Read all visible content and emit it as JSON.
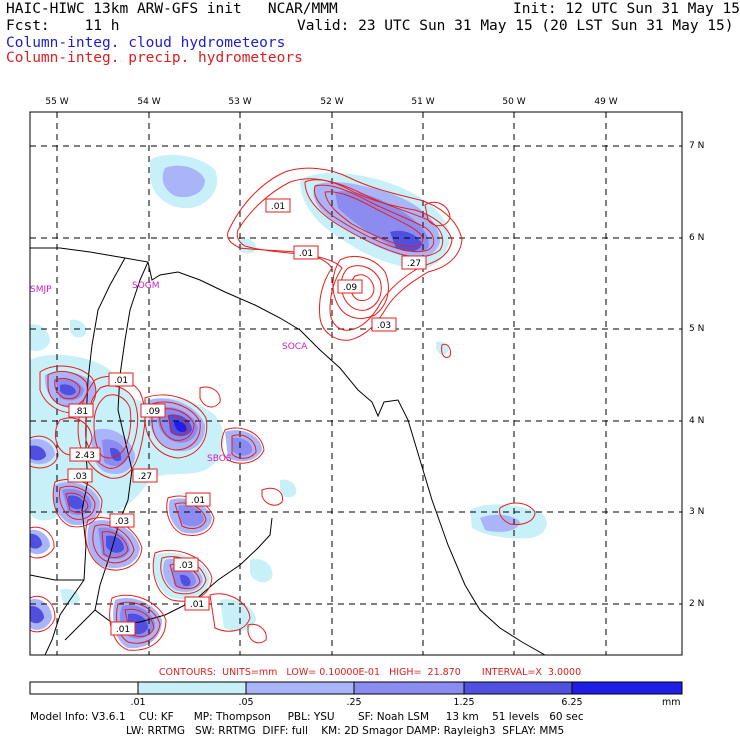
{
  "header": {
    "title": "HAIC-HIWC 13km ARW-GFS init   NCAR/MMM",
    "init": "Init: 12 UTC Sun 31 May 15",
    "fcst": "Fcst:    11 h",
    "valid": "Valid: 23 UTC Sun 31 May 15 (20 LST Sun 31 May 15)",
    "legend_cloud": "Column-integ. cloud hydrometeors",
    "legend_precip": "Column-integ. precip. hydrometeors"
  },
  "map": {
    "lon_labels": [
      "55 W",
      "54 W",
      "53 W",
      "52 W",
      "51 W",
      "50 W",
      "49 W"
    ],
    "lat_labels": [
      "7 N",
      "6 N",
      "5 N",
      "4 N",
      "3 N",
      "2 N"
    ],
    "stations": [
      "SMJP",
      "SOGM",
      "SOCA",
      "SBOS"
    ],
    "contour_labels": [
      ".01",
      ".01",
      ".27",
      ".09",
      ".03",
      ".01",
      ".81",
      ".09",
      "2.43",
      ".03",
      ".27",
      ".01",
      ".03",
      ".03",
      ".01",
      ".01"
    ],
    "colors": {
      "cloud_light": "#c8f0f8",
      "cloud_mid1": "#aab4f8",
      "cloud_mid2": "#8c8cf0",
      "cloud_dark": "#5050e0",
      "cloud_max": "#1e1ee6",
      "precip_contour": "#e61e1e",
      "coast": "#000000",
      "station": "#c81ec8"
    }
  },
  "colorbar": {
    "contours_text": "CONTOURS:  UNITS=mm   LOW= 0.10000E-01   HIGH=  21.870       INTERVAL=X  3.0000",
    "ticks": [
      ".01",
      ".05",
      ".25",
      "1.25",
      "6.25"
    ],
    "units": "mm",
    "colors": [
      "#ffffff",
      "#c8f0f8",
      "#aab4f8",
      "#8c8cf0",
      "#5050e0",
      "#1e1ee6"
    ]
  },
  "model_info": {
    "line1": "Model Info: V3.6.1    CU: KF      MP: Thompson     PBL: YSU       SF: Noah LSM     13 km    51 levels   60 sec",
    "line2": "LW: RRTMG   SW: RRTMG  DIFF: full    KM: 2D Smagor DAMP: Rayleigh3  SFLAY: MM5"
  }
}
